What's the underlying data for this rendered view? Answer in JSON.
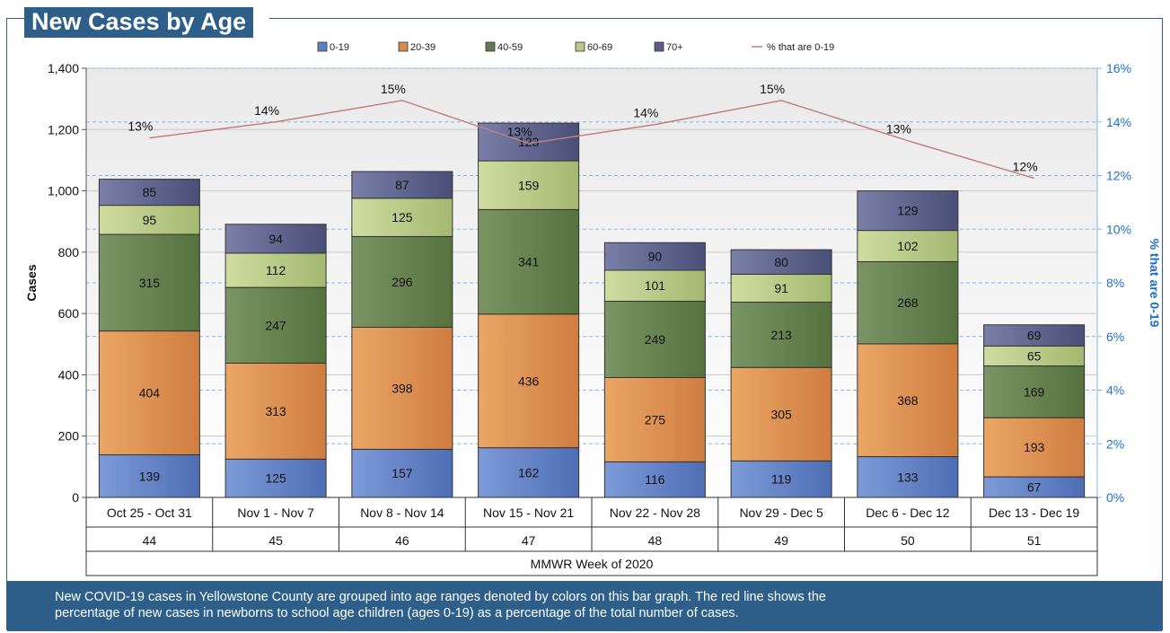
{
  "title": "New Cases by Age",
  "caption_line1": "New COVID-19 cases in Yellowstone County are grouped into age ranges denoted by colors on this bar graph. The red line shows the",
  "caption_line2": "percentage of new cases in newborns to school age children (ages 0-19) as a percentage of the total number of cases.",
  "colors": {
    "0-19": "#5f7fc4",
    "20-39": "#d98a4c",
    "40-59": "#5f7c4c",
    "60-69": "#b8c98a",
    "70+": "#5a5f88",
    "line": "#c47f7f",
    "gridline_right": "#7fb7f0",
    "axis_right_text": "#1f6fd0"
  },
  "chart_data": {
    "type": "bar",
    "stacked": true,
    "categories": [
      "Oct 25 - Oct 31",
      "Nov 1 - Nov 7",
      "Nov 8 - Nov 14",
      "Nov 15 - Nov 21",
      "Nov 22 - Nov 28",
      "Nov 29 - Dec 5",
      "Dec 6 - Dec 12",
      "Dec 13 - Dec 19"
    ],
    "week_numbers": [
      "44",
      "45",
      "46",
      "47",
      "48",
      "49",
      "50",
      "51"
    ],
    "xlabel": "MMWR Week of 2020",
    "ylabel": "Cases",
    "ylim": [
      0,
      1400
    ],
    "yticks": [
      "0",
      "200",
      "400",
      "600",
      "800",
      "1,000",
      "1,200",
      "1,400"
    ],
    "y2label": "% that are 0-19",
    "y2lim": [
      0,
      16
    ],
    "y2ticks": [
      "0%",
      "2%",
      "4%",
      "6%",
      "8%",
      "10%",
      "12%",
      "14%",
      "16%"
    ],
    "series": [
      {
        "name": "0-19",
        "values": [
          139,
          125,
          157,
          162,
          116,
          119,
          133,
          67
        ]
      },
      {
        "name": "20-39",
        "values": [
          404,
          313,
          398,
          436,
          275,
          305,
          368,
          193
        ]
      },
      {
        "name": "40-59",
        "values": [
          315,
          247,
          296,
          341,
          249,
          213,
          268,
          169
        ]
      },
      {
        "name": "60-69",
        "values": [
          95,
          112,
          125,
          159,
          101,
          91,
          102,
          65
        ]
      },
      {
        "name": "70+",
        "values": [
          85,
          94,
          87,
          123,
          90,
          80,
          129,
          69
        ]
      }
    ],
    "line_series": {
      "name": "% that are 0-19",
      "values": [
        13.4,
        14.0,
        14.8,
        13.2,
        13.9,
        14.8,
        13.3,
        11.9
      ],
      "labels": [
        "13%",
        "14%",
        "15%",
        "13%",
        "14%",
        "15%",
        "13%",
        "12%"
      ]
    },
    "legend": {
      "position": "top",
      "labels": [
        "0-19",
        "20-39",
        "40-59",
        "60-69",
        "70+",
        "% that are 0-19"
      ]
    },
    "grid": true
  }
}
